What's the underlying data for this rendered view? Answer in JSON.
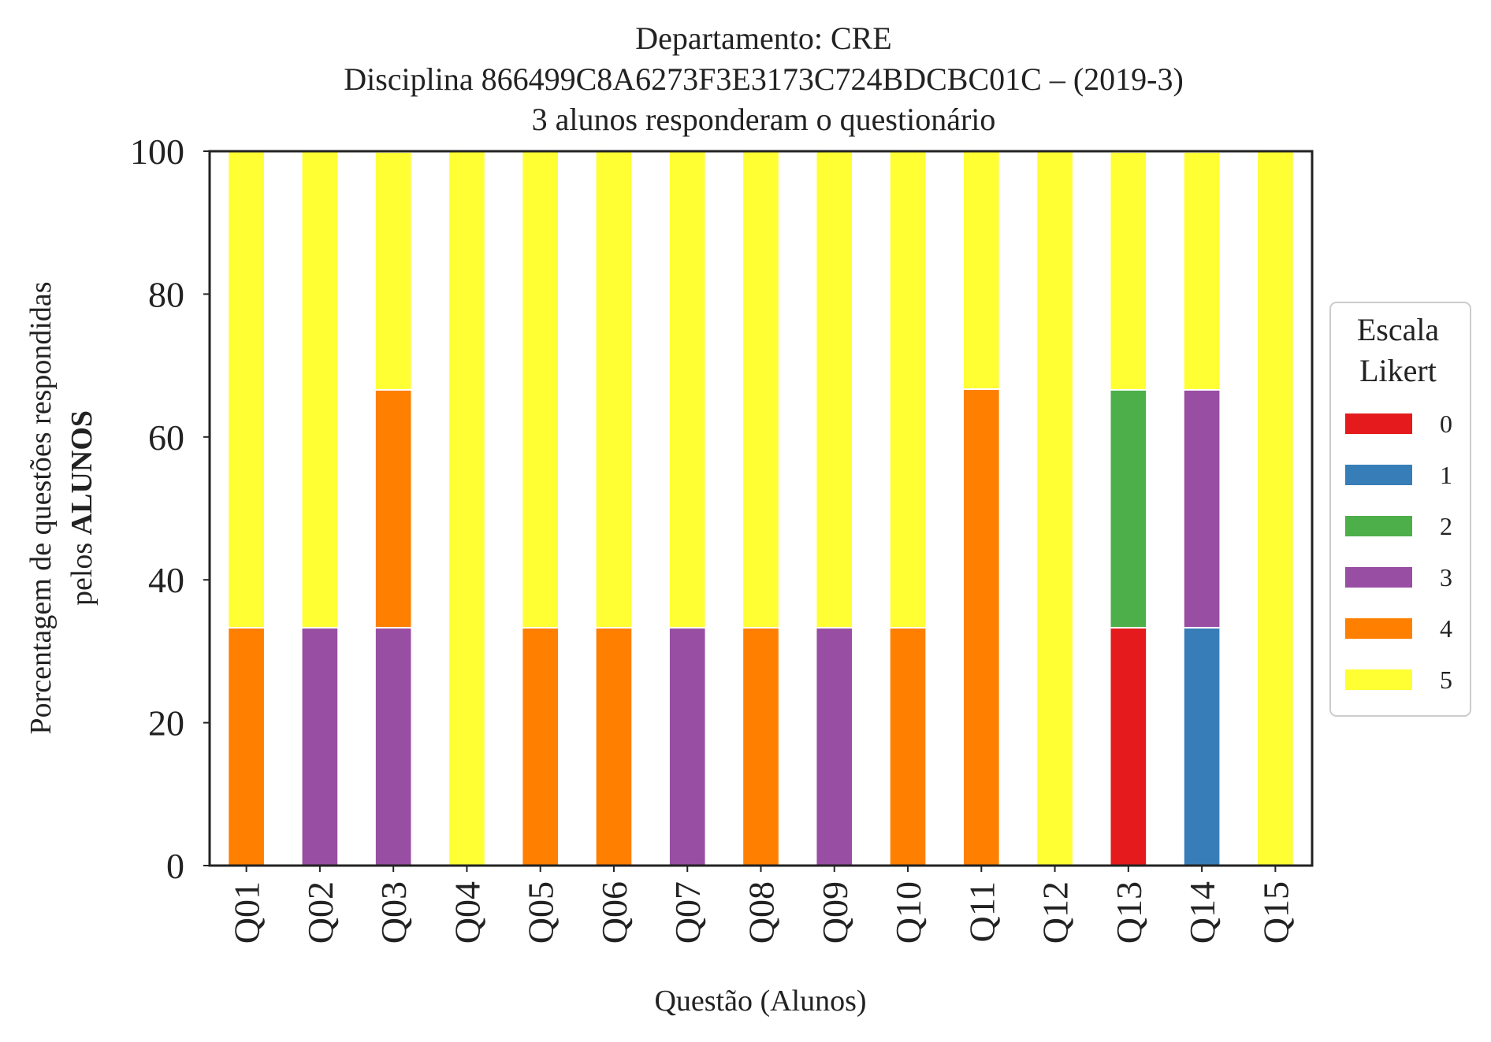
{
  "chart_data": {
    "type": "bar",
    "stacked": true,
    "title_lines": [
      "Departamento: CRE",
      "Disciplina 866499C8A6273F3E3173C724BDCBC01C – (2019-3)",
      "3 alunos responderam o questionário"
    ],
    "xlabel": "Questão (Alunos)",
    "ylabel_line1": "Porcentagem de questões respondidas",
    "ylabel_line2_prefix": "pelos ",
    "ylabel_line2_bold": "ALUNOS",
    "ylim": [
      0,
      100
    ],
    "yticks": [
      "0",
      "20",
      "40",
      "60",
      "80",
      "100"
    ],
    "grid": false,
    "categories": [
      "Q01",
      "Q02",
      "Q03",
      "Q04",
      "Q05",
      "Q06",
      "Q07",
      "Q08",
      "Q09",
      "Q10",
      "Q11",
      "Q12",
      "Q13",
      "Q14",
      "Q15"
    ],
    "legend": {
      "title_lines": [
        "Escala",
        "Likert"
      ],
      "placement": "right"
    },
    "series": [
      {
        "name": "0",
        "color": "#e41a1c",
        "values": [
          0,
          0,
          0,
          0,
          0,
          0,
          0,
          0,
          0,
          0,
          0,
          0,
          33.3,
          0,
          0
        ]
      },
      {
        "name": "1",
        "color": "#377eb8",
        "values": [
          0,
          0,
          0,
          0,
          0,
          0,
          0,
          0,
          0,
          0,
          0,
          0,
          0,
          33.3,
          0
        ]
      },
      {
        "name": "2",
        "color": "#4daf4a",
        "values": [
          0,
          0,
          0,
          0,
          0,
          0,
          0,
          0,
          0,
          0,
          0,
          0,
          33.3,
          0,
          0
        ]
      },
      {
        "name": "3",
        "color": "#984ea3",
        "values": [
          0,
          33.3,
          33.3,
          0,
          0,
          0,
          33.3,
          0,
          33.3,
          0,
          0,
          0,
          0,
          33.3,
          0
        ]
      },
      {
        "name": "4",
        "color": "#ff7f00",
        "values": [
          33.3,
          0,
          33.3,
          0,
          33.3,
          33.3,
          0,
          33.3,
          0,
          33.3,
          66.7,
          0,
          0,
          0,
          0
        ]
      },
      {
        "name": "5",
        "color": "#ffff33",
        "values": [
          66.7,
          66.7,
          33.3,
          100,
          66.7,
          66.7,
          66.7,
          66.7,
          66.7,
          66.7,
          33.3,
          100,
          33.3,
          33.3,
          100
        ]
      }
    ]
  }
}
